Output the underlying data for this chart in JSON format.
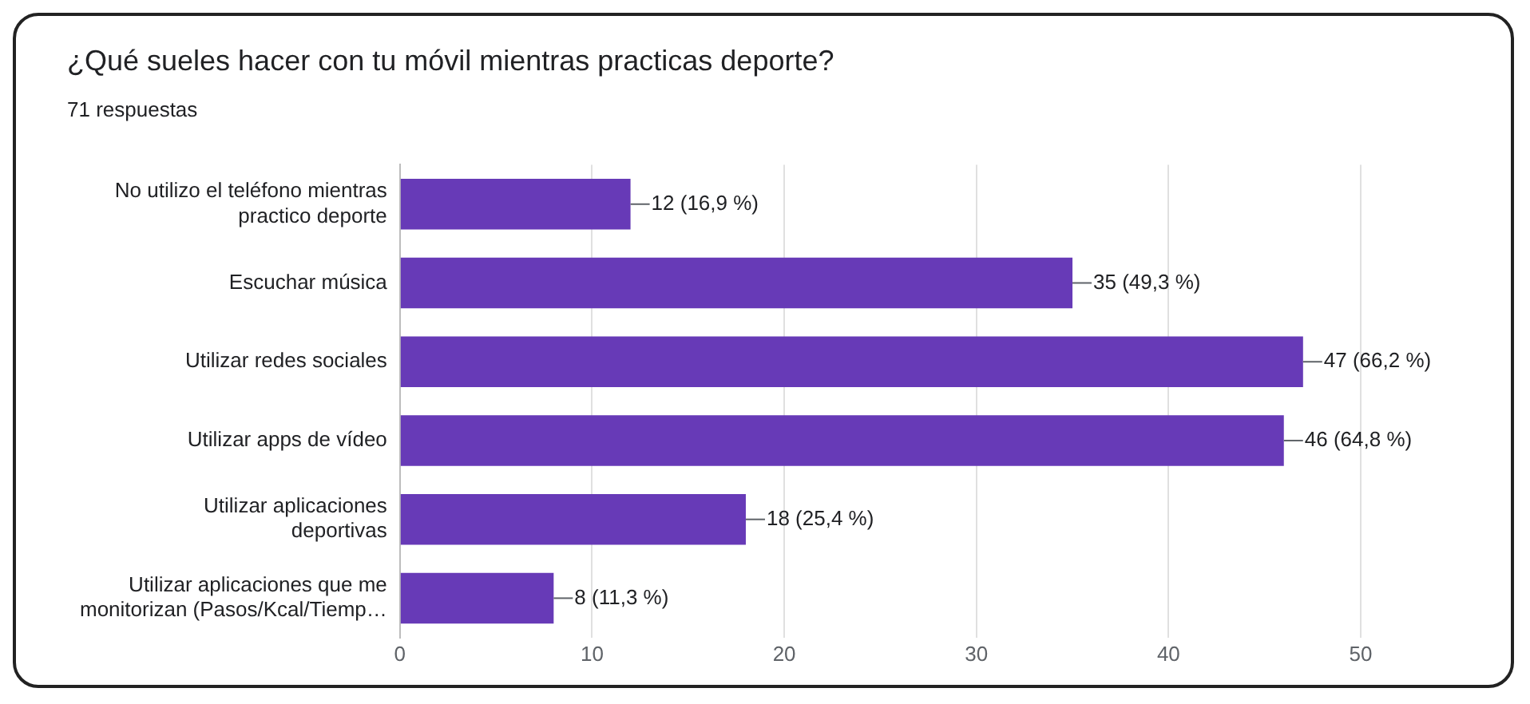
{
  "chart_data": {
    "type": "bar",
    "orientation": "horizontal",
    "title": "¿Qué sueles hacer con tu móvil mientras practicas deporte?",
    "subtitle": "71 respuestas",
    "categories": [
      "No utilizo el teléfono mientras practico deporte",
      "Escuchar música",
      "Utilizar redes sociales",
      "Utilizar apps de vídeo",
      "Utilizar aplicaciones deportivas",
      "Utilizar aplicaciones que me monitorizan (Pasos/Kcal/Tiemp…"
    ],
    "values": [
      12,
      35,
      47,
      46,
      18,
      8
    ],
    "value_labels": [
      "12 (16,9 %)",
      "35 (49,3 %)",
      "47 (66,2 %)",
      "46 (64,8 %)",
      "18 (25,4 %)",
      "8 (11,3 %)"
    ],
    "color": "#673ab7",
    "xlim": [
      0,
      50
    ],
    "xticks": [
      0,
      10,
      20,
      30,
      40,
      50
    ],
    "grid": "x",
    "legend": false
  }
}
